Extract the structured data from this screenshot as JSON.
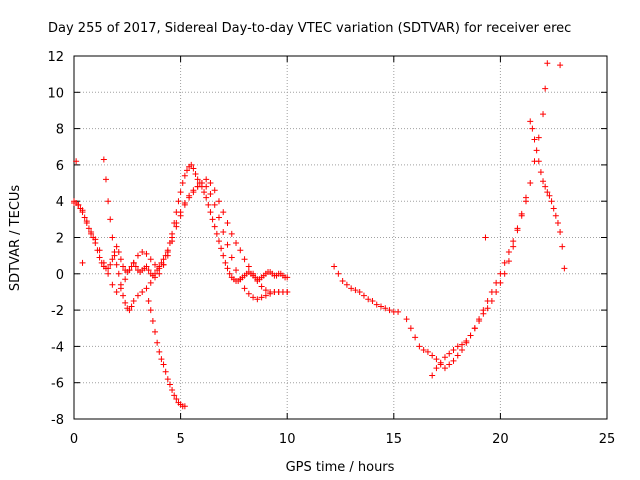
{
  "chart_data": {
    "type": "scatter",
    "title": "Day 255 of 2017, Sidereal Day-to-day VTEC variation (SDTVAR) for receiver erec",
    "xlabel": "GPS time / hours",
    "ylabel": "SDTVAR / TECUs",
    "xlim": [
      0,
      25
    ],
    "ylim": [
      -8,
      12
    ],
    "xticks": [
      0,
      5,
      10,
      15,
      20,
      25
    ],
    "yticks": [
      -8,
      -6,
      -4,
      -2,
      0,
      2,
      4,
      6,
      8,
      10,
      12
    ],
    "grid": true,
    "marker": "+",
    "color": "#ff0000",
    "series": [
      {
        "name": "SDTVAR",
        "x": [
          0.0,
          0.1,
          0.2,
          0.3,
          0.4,
          0.5,
          0.6,
          0.7,
          0.8,
          0.9,
          1.0,
          1.1,
          1.2,
          1.3,
          1.4,
          1.5,
          1.6,
          1.7,
          1.8,
          1.9,
          2.0,
          2.1,
          2.2,
          2.3,
          2.4,
          2.5,
          2.6,
          2.7,
          2.8,
          2.9,
          3.0,
          3.1,
          3.2,
          3.3,
          3.4,
          3.5,
          3.6,
          3.7,
          3.8,
          3.9,
          4.0,
          4.1,
          4.2,
          4.3,
          4.4,
          4.5,
          4.6,
          4.7,
          4.8,
          4.9,
          5.0,
          5.1,
          5.2,
          5.3,
          5.4,
          5.5,
          5.6,
          5.7,
          5.8,
          5.9,
          6.0,
          6.1,
          6.2,
          6.3,
          6.4,
          6.5,
          6.6,
          6.7,
          6.8,
          6.9,
          7.0,
          7.1,
          7.2,
          7.3,
          7.4,
          7.5,
          7.6,
          7.7,
          7.8,
          7.9,
          8.0,
          8.1,
          8.2,
          8.3,
          8.4,
          8.5,
          8.6,
          8.7,
          8.8,
          8.9,
          9.0,
          9.1,
          9.2,
          9.3,
          9.4,
          9.5,
          9.6,
          9.7,
          9.8,
          9.9,
          10.0,
          0.0,
          0.2,
          0.4,
          0.6,
          0.8,
          1.0,
          1.2,
          1.4,
          1.6,
          1.8,
          2.0,
          2.2,
          2.4,
          2.6,
          2.8,
          3.0,
          3.2,
          3.4,
          3.6,
          3.8,
          4.0,
          4.2,
          4.4,
          4.6,
          4.8,
          5.0,
          5.2,
          5.4,
          5.6,
          5.8,
          6.0,
          6.2,
          6.4,
          6.6,
          6.8,
          7.0,
          7.2,
          7.4,
          7.6,
          7.8,
          8.0,
          8.2,
          8.4,
          8.6,
          8.8,
          9.0,
          9.2,
          9.4,
          9.6,
          9.8,
          10.0,
          1.4,
          1.5,
          1.6,
          1.7,
          1.8,
          1.9,
          2.0,
          2.1,
          2.2,
          2.3,
          2.4,
          2.5,
          2.6,
          2.7,
          2.8,
          3.0,
          3.2,
          3.4,
          3.6,
          3.8,
          4.0,
          4.2,
          4.4,
          4.6,
          4.8,
          5.0,
          5.2,
          5.4,
          5.6,
          5.8,
          6.0,
          6.2,
          6.4,
          6.6,
          6.8,
          7.0,
          7.2,
          7.4,
          7.6,
          7.8,
          8.0,
          8.2,
          8.4,
          8.6,
          8.8,
          9.0,
          9.2,
          9.4,
          9.6,
          9.8,
          10.0,
          3.5,
          3.6,
          3.7,
          3.8,
          3.9,
          4.0,
          4.1,
          4.2,
          4.3,
          4.4,
          4.5,
          4.6,
          4.7,
          4.8,
          4.9,
          5.0,
          5.1,
          5.2,
          12.2,
          12.4,
          12.6,
          12.8,
          13.0,
          13.2,
          13.4,
          13.6,
          13.8,
          14.0,
          14.2,
          14.4,
          14.6,
          14.8,
          15.0,
          15.2,
          15.6,
          15.8,
          16.0,
          16.2,
          16.4,
          16.6,
          16.8,
          17.0,
          17.2,
          17.4,
          17.6,
          17.8,
          18.0,
          18.2,
          18.4,
          18.6,
          18.8,
          19.0,
          19.2,
          19.4,
          19.6,
          19.8,
          20.0,
          20.2,
          20.4,
          20.6,
          20.8,
          21.0,
          21.2,
          21.4,
          21.6,
          21.8,
          22.0,
          22.1,
          22.2,
          16.8,
          17.0,
          17.2,
          17.4,
          17.6,
          17.8,
          18.0,
          18.2,
          18.4,
          18.6,
          18.8,
          19.0,
          19.2,
          19.4,
          19.6,
          19.8,
          20.0,
          20.2,
          20.4,
          20.6,
          20.8,
          21.0,
          21.2,
          21.4,
          21.5,
          21.6,
          21.7,
          21.8,
          21.9,
          22.0,
          22.1,
          22.2,
          22.3,
          22.4,
          22.5,
          22.6,
          22.7,
          22.8,
          22.9,
          23.0,
          19.3,
          22.8,
          0.1,
          0.4
        ],
        "y": [
          4.0,
          3.9,
          3.8,
          3.6,
          3.4,
          3.1,
          2.8,
          2.5,
          2.2,
          2.0,
          1.7,
          1.3,
          0.9,
          0.6,
          0.4,
          0.3,
          0.3,
          0.5,
          0.8,
          1.2,
          1.5,
          1.2,
          0.8,
          0.4,
          0.2,
          0.1,
          0.2,
          0.4,
          0.6,
          0.4,
          0.2,
          0.1,
          0.2,
          0.3,
          0.4,
          0.2,
          0.0,
          -0.1,
          0.0,
          0.2,
          0.4,
          0.6,
          0.8,
          1.0,
          1.3,
          1.7,
          2.2,
          2.8,
          3.4,
          4.0,
          4.5,
          5.0,
          5.4,
          5.7,
          5.9,
          6.0,
          5.8,
          5.5,
          5.2,
          5.0,
          4.8,
          4.5,
          4.2,
          3.8,
          3.4,
          3.0,
          2.6,
          2.2,
          1.8,
          1.4,
          1.0,
          0.6,
          0.3,
          0.0,
          -0.2,
          -0.3,
          -0.4,
          -0.4,
          -0.3,
          -0.2,
          -0.1,
          0.0,
          0.1,
          0.0,
          -0.1,
          -0.2,
          -0.3,
          -0.3,
          -0.2,
          -0.1,
          0.0,
          0.1,
          0.1,
          0.0,
          -0.1,
          -0.1,
          0.0,
          0.0,
          -0.1,
          -0.2,
          -0.2,
          3.9,
          3.8,
          3.5,
          2.9,
          2.3,
          1.9,
          1.3,
          0.6,
          0.0,
          -0.6,
          -1.0,
          -0.8,
          -0.3,
          0.2,
          0.6,
          1.0,
          1.2,
          1.1,
          0.8,
          0.5,
          0.3,
          0.5,
          1.0,
          1.8,
          2.6,
          3.2,
          3.8,
          4.2,
          4.5,
          4.8,
          5.0,
          4.8,
          4.4,
          3.8,
          3.1,
          2.3,
          1.6,
          0.9,
          0.2,
          -0.3,
          -0.8,
          -1.1,
          -1.3,
          -1.4,
          -1.3,
          -1.2,
          -1.1,
          -1.0,
          -1.0,
          -1.0,
          -1.0,
          6.3,
          5.2,
          4.0,
          3.0,
          2.0,
          1.0,
          0.5,
          0.0,
          -0.6,
          -1.2,
          -1.6,
          -1.9,
          -2.0,
          -1.8,
          -1.5,
          -1.2,
          -1.0,
          -0.8,
          -0.5,
          -0.2,
          0.0,
          0.5,
          1.2,
          2.0,
          2.8,
          3.4,
          3.9,
          4.3,
          4.6,
          4.8,
          5.0,
          5.2,
          5.0,
          4.6,
          4.0,
          3.4,
          2.8,
          2.2,
          1.7,
          1.3,
          0.8,
          0.4,
          0.0,
          -0.4,
          -0.7,
          -0.9,
          -1.0,
          -1.0,
          -1.0,
          -1.0,
          -1.0,
          -1.5,
          -2.0,
          -2.6,
          -3.2,
          -3.8,
          -4.3,
          -4.7,
          -5.0,
          -5.4,
          -5.8,
          -6.1,
          -6.4,
          -6.7,
          -6.9,
          -7.1,
          -7.2,
          -7.3,
          -7.3,
          0.4,
          0.0,
          -0.4,
          -0.6,
          -0.8,
          -0.9,
          -1.0,
          -1.2,
          -1.4,
          -1.5,
          -1.7,
          -1.8,
          -1.9,
          -2.0,
          -2.1,
          -2.1,
          -2.5,
          -3.0,
          -3.5,
          -4.0,
          -4.2,
          -4.3,
          -4.5,
          -4.7,
          -5.0,
          -5.2,
          -5.0,
          -4.8,
          -4.5,
          -4.2,
          -3.8,
          -3.4,
          -3.0,
          -2.5,
          -2.0,
          -1.5,
          -1.0,
          -0.5,
          0.0,
          0.6,
          1.2,
          1.8,
          2.5,
          3.2,
          4.0,
          5.0,
          6.2,
          7.5,
          8.8,
          10.2,
          11.6,
          -5.6,
          -5.2,
          -4.9,
          -4.6,
          -4.4,
          -4.2,
          -4.0,
          -3.9,
          -3.7,
          -3.4,
          -3.0,
          -2.6,
          -2.2,
          -1.9,
          -1.5,
          -1.0,
          -0.5,
          0.0,
          0.7,
          1.5,
          2.4,
          3.3,
          4.2,
          8.4,
          8.0,
          7.4,
          6.8,
          6.2,
          5.6,
          5.1,
          4.8,
          4.5,
          4.3,
          4.0,
          3.6,
          3.2,
          2.8,
          2.3,
          1.5,
          0.3,
          2.0,
          11.5,
          6.2,
          0.6
        ]
      }
    ]
  }
}
